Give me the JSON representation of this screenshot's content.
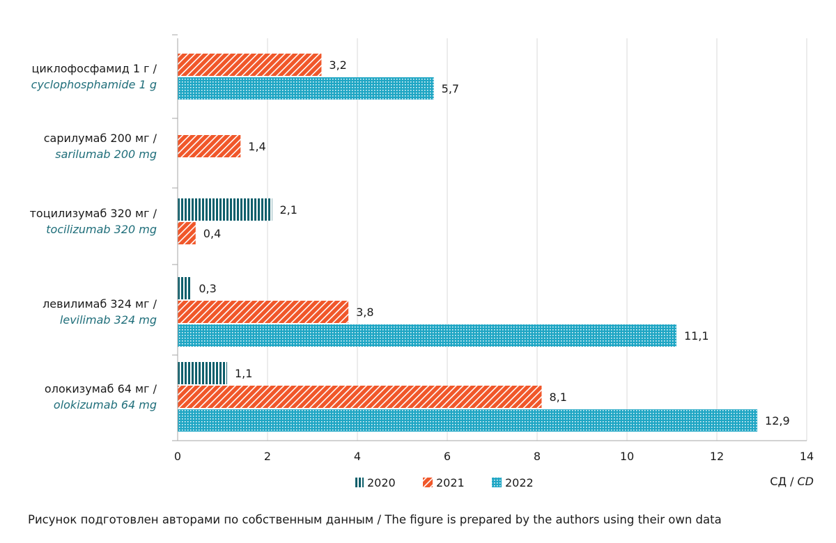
{
  "chart_data": {
    "type": "bar",
    "orientation": "horizontal",
    "categories": [
      {
        "ru": "циклофосфамид 1 г /",
        "en": "cyclophosphamide 1 g"
      },
      {
        "ru": "сарилумаб 200 мг /",
        "en": "sarilumab 200 mg"
      },
      {
        "ru": "тоцилизумаб 320 мг /",
        "en": "tocilizumab 320 mg"
      },
      {
        "ru": "левилимаб 324 мг /",
        "en": "levilimab 324 mg"
      },
      {
        "ru": "олокизумаб 64 мг /",
        "en": "olokizumab 64 mg"
      }
    ],
    "series": [
      {
        "name": "2020",
        "color": "#0e5f6b",
        "pattern": "vertical-stripes",
        "values": [
          null,
          null,
          2.1,
          0.3,
          1.1
        ],
        "labels": [
          "",
          "",
          "2,1",
          "0,3",
          "1,1"
        ]
      },
      {
        "name": "2021",
        "color": "#f0572a",
        "pattern": "diagonal-stripes",
        "values": [
          3.2,
          1.4,
          0.4,
          3.8,
          8.1
        ],
        "labels": [
          "3,2",
          "1,4",
          "0,4",
          "3,8",
          "8,1"
        ]
      },
      {
        "name": "2022",
        "color": "#1fa6c4",
        "pattern": "dotted-grid",
        "values": [
          5.7,
          null,
          null,
          11.1,
          12.9
        ],
        "labels": [
          "5,7",
          "",
          "",
          "11,1",
          "12,9"
        ]
      }
    ],
    "xlim": [
      0,
      14
    ],
    "xticks": [
      0,
      2,
      4,
      6,
      8,
      10,
      12,
      14
    ],
    "xlabel": {
      "ru": "СД / ",
      "en": "CD"
    },
    "grid": "vertical",
    "legend_position": "bottom"
  },
  "caption": "Рисунок подготовлен авторами по собственным данным / The figure is prepared by the authors using their own data"
}
